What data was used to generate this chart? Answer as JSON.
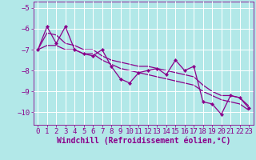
{
  "title": "",
  "xlabel": "Windchill (Refroidissement éolien,°C)",
  "background_color": "#b2e8e8",
  "line_color": "#8b008b",
  "grid_color": "#ffffff",
  "x": [
    0,
    1,
    2,
    3,
    4,
    5,
    6,
    7,
    8,
    9,
    10,
    11,
    12,
    13,
    14,
    15,
    16,
    17,
    18,
    19,
    20,
    21,
    22,
    23
  ],
  "y_main": [
    -7.0,
    -5.9,
    -6.7,
    -5.9,
    -7.0,
    -7.2,
    -7.3,
    -7.0,
    -7.8,
    -8.4,
    -8.6,
    -8.1,
    -8.0,
    -7.9,
    -8.2,
    -7.5,
    -8.0,
    -7.8,
    -9.5,
    -9.6,
    -10.1,
    -9.2,
    -9.3,
    -9.8
  ],
  "y_line1": [
    -7.0,
    -6.2,
    -6.3,
    -6.7,
    -6.8,
    -7.0,
    -7.0,
    -7.3,
    -7.5,
    -7.6,
    -7.7,
    -7.8,
    -7.8,
    -7.9,
    -8.0,
    -8.1,
    -8.2,
    -8.3,
    -8.7,
    -9.0,
    -9.2,
    -9.2,
    -9.3,
    -9.7
  ],
  "y_line2": [
    -7.0,
    -6.8,
    -6.8,
    -7.0,
    -7.0,
    -7.2,
    -7.2,
    -7.5,
    -7.7,
    -7.9,
    -8.0,
    -8.1,
    -8.2,
    -8.3,
    -8.4,
    -8.5,
    -8.6,
    -8.7,
    -9.0,
    -9.2,
    -9.4,
    -9.5,
    -9.6,
    -9.9
  ],
  "xlim": [
    -0.5,
    23.5
  ],
  "ylim": [
    -10.6,
    -4.7
  ],
  "yticks": [
    -10,
    -9,
    -8,
    -7,
    -6,
    -5
  ],
  "xticks": [
    0,
    1,
    2,
    3,
    4,
    5,
    6,
    7,
    8,
    9,
    10,
    11,
    12,
    13,
    14,
    15,
    16,
    17,
    18,
    19,
    20,
    21,
    22,
    23
  ],
  "text_color": "#8b008b",
  "font_size": 6.5,
  "xlabel_font_size": 7
}
